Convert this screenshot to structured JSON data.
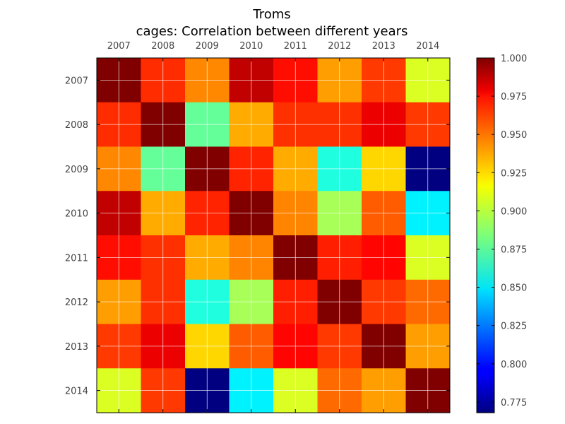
{
  "chart_data": {
    "type": "heatmap",
    "title": "Troms",
    "subtitle": "cages: Correlation between different years",
    "x_categories": [
      "2007",
      "2008",
      "2009",
      "2010",
      "2011",
      "2012",
      "2013",
      "2014"
    ],
    "y_categories": [
      "2007",
      "2008",
      "2009",
      "2010",
      "2011",
      "2012",
      "2013",
      "2014"
    ],
    "x_tick_position": "top",
    "grid": true,
    "colormap": "jet",
    "vmin": 0.768,
    "vmax": 1.0,
    "colorbar_ticks": [
      1.0,
      0.975,
      0.95,
      0.925,
      0.9,
      0.875,
      0.85,
      0.825,
      0.8,
      0.775
    ],
    "colorbar_tick_labels": [
      "1.000",
      "0.975",
      "0.950",
      "0.925",
      "0.900",
      "0.875",
      "0.850",
      "0.825",
      "0.800",
      "0.775"
    ],
    "values": [
      [
        1.0,
        0.961,
        0.94,
        0.985,
        0.968,
        0.935,
        0.958,
        0.905
      ],
      [
        0.961,
        1.0,
        0.878,
        0.932,
        0.96,
        0.96,
        0.975,
        0.958
      ],
      [
        0.94,
        0.878,
        1.0,
        0.963,
        0.932,
        0.862,
        0.922,
        0.768
      ],
      [
        0.985,
        0.932,
        0.963,
        1.0,
        0.941,
        0.893,
        0.95,
        0.852
      ],
      [
        0.968,
        0.96,
        0.932,
        0.941,
        1.0,
        0.964,
        0.97,
        0.905
      ],
      [
        0.935,
        0.96,
        0.862,
        0.893,
        0.964,
        1.0,
        0.958,
        0.947
      ],
      [
        0.958,
        0.975,
        0.922,
        0.95,
        0.97,
        0.958,
        1.0,
        0.935
      ],
      [
        0.905,
        0.958,
        0.768,
        0.852,
        0.905,
        0.947,
        0.935,
        1.0
      ]
    ]
  }
}
